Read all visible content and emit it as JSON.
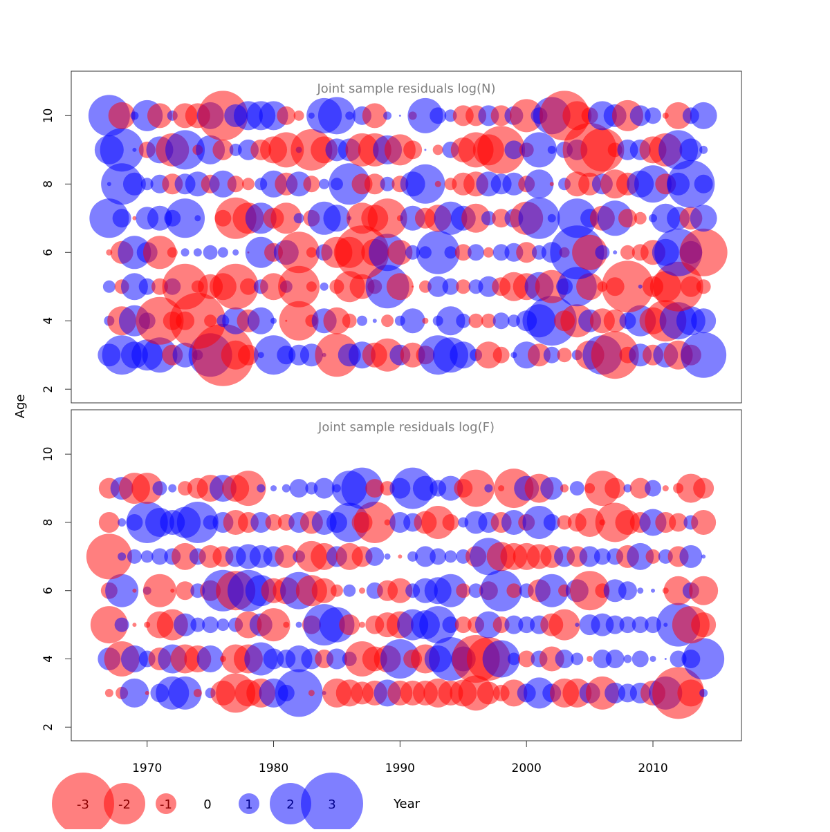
{
  "figure": {
    "ylabel": "Age",
    "xlabel": "Year",
    "legend_labels": [
      "-3",
      "-2",
      "-1",
      "0",
      "1",
      "2",
      "3"
    ],
    "legend_values": [
      -3,
      -2,
      -1,
      0,
      1,
      2,
      3
    ],
    "colors": {
      "negative": "#ff0000",
      "positive": "#0000ff",
      "title": "#808080",
      "axis": "#333333"
    }
  },
  "chart_data": [
    {
      "type": "scatter",
      "title": "Joint sample residuals log(N)",
      "xlim": [
        1964,
        2017
      ],
      "ylim": [
        1.6,
        11.3
      ],
      "x_ticks": [
        1970,
        1980,
        1990,
        2000,
        2010
      ],
      "y_ticks": [
        2,
        4,
        6,
        8,
        10
      ],
      "years": [
        1967,
        1968,
        1969,
        1970,
        1971,
        1972,
        1973,
        1974,
        1975,
        1976,
        1977,
        1978,
        1979,
        1980,
        1981,
        1982,
        1983,
        1984,
        1985,
        1986,
        1987,
        1988,
        1989,
        1990,
        1991,
        1992,
        1993,
        1994,
        1995,
        1996,
        1997,
        1998,
        1999,
        2000,
        2001,
        2002,
        2003,
        2004,
        2005,
        2006,
        2007,
        2008,
        2009,
        2010,
        2011,
        2012,
        2013,
        2014
      ],
      "series": [
        {
          "age": 3,
          "residuals": [
            1.1,
            1.9,
            1.3,
            1.5,
            1.7,
            -1.0,
            1.2,
            0.5,
            2.1,
            -3.0,
            -1.4,
            -1.0,
            0.3,
            1.9,
            0.9,
            1.0,
            1.1,
            0.2,
            -2.1,
            1.1,
            1.3,
            -1.2,
            -1.6,
            1.0,
            -1.2,
            -0.9,
            1.9,
            1.7,
            1.3,
            0.6,
            -1.3,
            -0.8,
            0.3,
            1.3,
            -1.1,
            0.8,
            -0.7,
            0.5,
            -1.4,
            1.9,
            -2.3,
            -0.8,
            1.1,
            -1.0,
            1.2,
            -1.4,
            -1.0,
            2.2
          ]
        },
        {
          "age": 4,
          "residuals": [
            0.5,
            -1.4,
            1.5,
            0.8,
            -2.3,
            -0.9,
            -0.9,
            -2.7,
            -0.6,
            0.6,
            1.3,
            -1.1,
            1.3,
            0.3,
            -0.1,
            -1.9,
            -0.6,
            1.2,
            -1.3,
            -0.7,
            0.5,
            0.2,
            -0.6,
            0.5,
            1.2,
            -0.3,
            0.5,
            1.4,
            0.7,
            -0.7,
            -0.7,
            0.8,
            0.6,
            1.0,
            1.6,
            2.4,
            -1.0,
            -1.6,
            1.1,
            -1.2,
            -1.1,
            0.8,
            1.5,
            -1.3,
            -2.0,
            1.8,
            1.4,
            1.2
          ]
        },
        {
          "age": 5,
          "residuals": [
            0.6,
            -0.7,
            1.3,
            0.8,
            -0.8,
            0.8,
            -2.2,
            -0.6,
            -1.2,
            -1.3,
            -2.2,
            -0.8,
            0.7,
            -1.3,
            0.6,
            -2.0,
            -0.5,
            0.4,
            -0.7,
            -1.5,
            -1.2,
            -0.7,
            2.1,
            -1.3,
            -0.1,
            -0.6,
            1.0,
            0.8,
            -0.7,
            0.7,
            1.0,
            -0.9,
            -1.4,
            -1.3,
            1.4,
            -1.6,
            0.8,
            1.9,
            -1.3,
            -0.5,
            -0.9,
            -2.5,
            0.2,
            -1.0,
            -1.5,
            -2.4,
            -1.0,
            -0.7
          ]
        },
        {
          "age": 6,
          "residuals": [
            -0.3,
            -1.1,
            1.6,
            1.0,
            -1.6,
            -0.5,
            0.4,
            0.4,
            0.7,
            0.5,
            0.3,
            -0.1,
            1.5,
            -0.9,
            1.2,
            -2.0,
            -0.5,
            0.8,
            -1.5,
            -1.5,
            -2.6,
            -1.3,
            1.8,
            -1.2,
            0.7,
            0.6,
            2.1,
            0.6,
            -0.8,
            0.8,
            -0.5,
            0.8,
            0.9,
            -1.0,
            0.7,
            1.0,
            -0.5,
            2.6,
            -1.7,
            0.7,
            0.2,
            -0.7,
            -0.8,
            -1.2,
            1.3,
            2.3,
            1.1,
            -2.3
          ]
        },
        {
          "age": 7,
          "residuals": [
            1.9,
            0.9,
            -0.2,
            1.1,
            1.2,
            0.8,
            1.9,
            0.3,
            0,
            -0.8,
            -2.0,
            -1.5,
            1.5,
            -1.0,
            -1.5,
            0.5,
            -0.8,
            1.6,
            1.3,
            0.2,
            -1.5,
            -1.3,
            -1.9,
            -0.3,
            1.2,
            -1.0,
            -1.3,
            1.6,
            1.2,
            -1.4,
            0.7,
            -0.9,
            0.9,
            -1.6,
            2.0,
            0.4,
            0,
            1.9,
            0.9,
            -1.2,
            1.7,
            -0.9,
            -0.6,
            0.4,
            1.4,
            1.1,
            -1.1,
            1.3
          ]
        },
        {
          "age": 8,
          "residuals": [
            0.2,
            2.0,
            1.1,
            0.6,
            0.9,
            -1.0,
            1.0,
            1.2,
            -0.9,
            1.3,
            -0.8,
            -0.6,
            0.6,
            1.3,
            -1.1,
            1.2,
            -0.8,
            0.5,
            0.6,
            2.0,
            -1.0,
            -1.0,
            0.7,
            -0.8,
            1.2,
            1.9,
            -0.3,
            -0.6,
            -1.1,
            -1.2,
            1.2,
            1.0,
            1.1,
            -0.8,
            1.4,
            -0.2,
            0.6,
            -1.2,
            -1.1,
            1.0,
            -1.4,
            -1.1,
            1.3,
            1.8,
            -1.0,
            1.1,
            2.3,
            0.9
          ]
        },
        {
          "age": 9,
          "residuals": [
            1.4,
            2.1,
            0.2,
            -0.8,
            1.3,
            -1.6,
            1.9,
            -0.5,
            1.4,
            -1.0,
            0.6,
            1.0,
            -1.0,
            -1.3,
            -1.7,
            0.3,
            -2.0,
            -1.3,
            1.1,
            1.1,
            -1.6,
            -1.6,
            1.4,
            -1.5,
            -0.9,
            0.1,
            -0.5,
            0.8,
            -1.2,
            -1.7,
            -1.5,
            -2.3,
            0.9,
            -0.7,
            1.7,
            0.4,
            0.8,
            1.0,
            -2.6,
            -2.1,
            -0.7,
            1.0,
            1.0,
            -1.3,
            -1.6,
            1.9,
            1.1,
            0.4
          ]
        },
        {
          "age": 10,
          "residuals": [
            2.0,
            -1.3,
            0.4,
            1.5,
            -1.2,
            0.5,
            -1.2,
            -1.2,
            1.3,
            -2.4,
            1.1,
            1.4,
            1.4,
            1.4,
            -0.9,
            -0.5,
            0.3,
            1.7,
            1.8,
            0.4,
            0.9,
            -1.2,
            0.4,
            0.1,
            -0.4,
            1.7,
            0.8,
            0.6,
            -1.0,
            -1.0,
            1.0,
            -1.0,
            0.9,
            -1.6,
            0.8,
            1.8,
            -2.4,
            -1.4,
            -0.8,
            1.4,
            1.1,
            -1.5,
            1.0,
            0.8,
            -0.3,
            -1.3,
            0.8,
            1.3
          ]
        }
      ]
    },
    {
      "type": "scatter",
      "title": "Joint sample residuals log(F)",
      "xlim": [
        1964,
        2017
      ],
      "ylim": [
        1.6,
        11.3
      ],
      "x_ticks": [
        1970,
        1980,
        1990,
        2000,
        2010
      ],
      "y_ticks": [
        2,
        4,
        6,
        8,
        10
      ],
      "years": [
        1967,
        1968,
        1969,
        1970,
        1971,
        1972,
        1973,
        1974,
        1975,
        1976,
        1977,
        1978,
        1979,
        1980,
        1981,
        1982,
        1983,
        1984,
        1985,
        1986,
        1987,
        1988,
        1989,
        1990,
        1991,
        1992,
        1993,
        1994,
        1995,
        1996,
        1997,
        1998,
        1999,
        2000,
        2001,
        2002,
        2003,
        2004,
        2005,
        2006,
        2007,
        2008,
        2009,
        2010,
        2011,
        2012,
        2013,
        2014
      ],
      "series": [
        {
          "age": 3,
          "residuals": [
            -0.4,
            -0.6,
            1.4,
            -0.2,
            0.9,
            1.6,
            1.6,
            -0.4,
            0.5,
            -1.2,
            -1.9,
            -1.3,
            -1.4,
            1.4,
            0.8,
            2.3,
            -0.3,
            0.2,
            -1.4,
            -1.3,
            -1.1,
            -1.2,
            1.3,
            -1.2,
            -1.2,
            -1.2,
            -1.4,
            -1.2,
            -1.3,
            -1.7,
            -1.1,
            -0.8,
            -1.3,
            0.9,
            1.5,
            0.9,
            -1.4,
            -1.4,
            1.0,
            -1.6,
            1.0,
            0.9,
            1.0,
            -1.2,
            1.6,
            -2.5,
            -1.3,
            0.4
          ]
        },
        {
          "age": 4,
          "residuals": [
            1.1,
            -1.7,
            1.3,
            0.8,
            -1.1,
            1.4,
            -1.4,
            -1.3,
            1.3,
            -0.3,
            -1.4,
            -1.4,
            1.6,
            1.0,
            0.9,
            1.3,
            1.0,
            -0.9,
            1.0,
            0.7,
            -1.7,
            -1.2,
            -1.3,
            1.9,
            -0.9,
            -1.4,
            1.3,
            2.1,
            1.2,
            -2.3,
            -2.1,
            1.8,
            0.6,
            -0.8,
            0.8,
            -1.2,
            0.9,
            0.6,
            -0.3,
            0.9,
            0.9,
            0.4,
            0.8,
            0.3,
            0.1,
            0.8,
            0.9,
            2.0
          ]
        },
        {
          "age": 5,
          "residuals": [
            -1.8,
            0.7,
            -0.2,
            -0.3,
            -1.3,
            -1.5,
            1.1,
            0.7,
            0.8,
            0.6,
            0.7,
            -1.3,
            1.1,
            -1.6,
            -0.3,
            0.3,
            -0.9,
            2.0,
            1.7,
            -1.0,
            -0.3,
            -0.9,
            -1.2,
            -1.3,
            1.5,
            1.4,
            1.8,
            0.8,
            -0.8,
            -0.8,
            1.3,
            -0.8,
            0.9,
            0.8,
            0.9,
            -1.1,
            -1.5,
            0.2,
            1.0,
            1.1,
            0.9,
            0.8,
            0.8,
            0.8,
            0.2,
            2.1,
            -1.8,
            -1.2
          ]
        },
        {
          "age": 6,
          "residuals": [
            -0.8,
            1.6,
            -0.2,
            0.4,
            -1.6,
            -0.2,
            -0.9,
            0.7,
            -1.0,
            2.0,
            -1.9,
            2.0,
            1.5,
            -1.2,
            -1.3,
            1.8,
            -1.5,
            -1.2,
            -0.6,
            0.6,
            -0.3,
            0.8,
            -1.0,
            -1.2,
            0.7,
            1.2,
            1.3,
            1.6,
            -0.7,
            0.7,
            -0.9,
            2.0,
            -0.7,
            0.7,
            -1.1,
            1.6,
            -0.6,
            1.1,
            -1.9,
            -0.7,
            1.1,
            0.9,
            0.3,
            0.2,
            -0.3,
            -1.4,
            0.8,
            -1.4
          ]
        },
        {
          "age": 7,
          "residuals": [
            -2.2,
            0.4,
            0.7,
            0.6,
            0.8,
            0.8,
            -1.3,
            0.8,
            -1.1,
            -1.0,
            1.0,
            1.2,
            1.1,
            1.0,
            -1.1,
            0.6,
            -1.5,
            -1.3,
            1.0,
            -1.3,
            -1.0,
            0.9,
            0.3,
            -0.2,
            0.5,
            1.0,
            0.8,
            0.6,
            0.7,
            -1.0,
            1.8,
            -1.4,
            -1.3,
            -1.3,
            -1.2,
            -1.1,
            1.0,
            -1.0,
            1.0,
            0.8,
            0.8,
            -1.1,
            1.3,
            -0.7,
            0.7,
            -1.0,
            1.1,
            0.2
          ]
        },
        {
          "age": 8,
          "residuals": [
            -1.0,
            0.4,
            0.8,
            2.0,
            1.4,
            1.2,
            1.5,
            2.0,
            0.7,
            1.0,
            -1.2,
            -1.0,
            1.0,
            -0.8,
            -0.8,
            1.0,
            -1.1,
            1.2,
            1.0,
            1.9,
            -1.0,
            -2.0,
            -0.3,
            1.0,
            0.9,
            -1.1,
            -1.6,
            -0.8,
            0.5,
            1.1,
            1.0,
            -1.0,
            1.2,
            -0.8,
            1.6,
            0.8,
            -0.7,
            -0.9,
            -1.4,
            -0.3,
            -1.9,
            -1.2,
            -1.0,
            1.3,
            -1.0,
            -0.9,
            0.7,
            -1.2
          ]
        },
        {
          "age": 9,
          "residuals": [
            -1.0,
            1.1,
            -1.5,
            -1.5,
            0.7,
            0.4,
            -0.7,
            -1.0,
            -1.3,
            1.3,
            -1.3,
            -1.7,
            0.4,
            0.3,
            0.4,
            0.9,
            0.6,
            1.0,
            0.4,
            1.7,
            2.0,
            -0.9,
            -0.7,
            1.0,
            2.0,
            1.2,
            0.8,
            1.2,
            -0.9,
            -1.8,
            0.4,
            -0.3,
            -1.9,
            1.2,
            -1.4,
            1.1,
            -0.4,
            0.7,
            -0.5,
            -1.7,
            -1.0,
            0.4,
            -1.0,
            0.8,
            -0.3,
            -0.5,
            -1.4,
            -1.0
          ]
        }
      ]
    }
  ]
}
